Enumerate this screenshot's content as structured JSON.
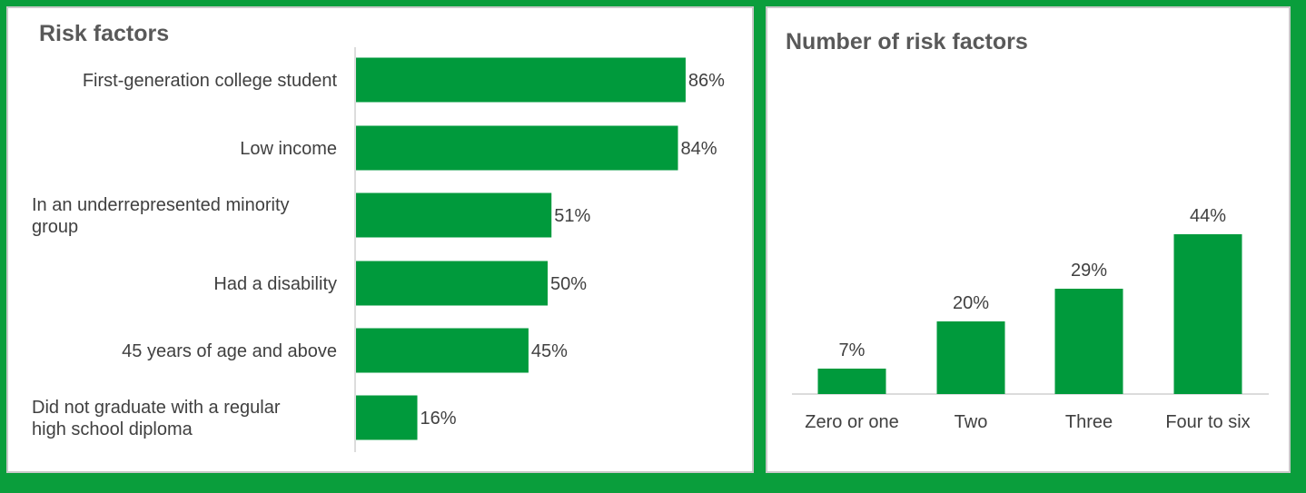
{
  "colors": {
    "bar": "#009a3c",
    "frame": "#0a9e3c",
    "axis": "#d0d0d0"
  },
  "chart_data": [
    {
      "type": "bar",
      "orientation": "horizontal",
      "title": "Risk factors",
      "categories": [
        [
          "First-generation college student"
        ],
        [
          "Low income"
        ],
        [
          "In an underrepresented minority",
          "group"
        ],
        [
          "Had a disability"
        ],
        [
          "45 years of age and above"
        ],
        [
          "Did not graduate with a regular",
          "high school diploma"
        ]
      ],
      "values": [
        86,
        84,
        51,
        50,
        45,
        16
      ],
      "value_labels": [
        "86%",
        "84%",
        "51%",
        "50%",
        "45%",
        "16%"
      ],
      "xlim": [
        0,
        100
      ],
      "grid": false,
      "legend": "none"
    },
    {
      "type": "bar",
      "orientation": "vertical",
      "title": "Number of risk factors",
      "categories": [
        "Zero or one",
        "Two",
        "Three",
        "Four to six"
      ],
      "values": [
        7,
        20,
        29,
        44
      ],
      "value_labels": [
        "7%",
        "20%",
        "29%",
        "44%"
      ],
      "ylim": [
        0,
        50
      ],
      "grid": false,
      "legend": "none"
    }
  ]
}
